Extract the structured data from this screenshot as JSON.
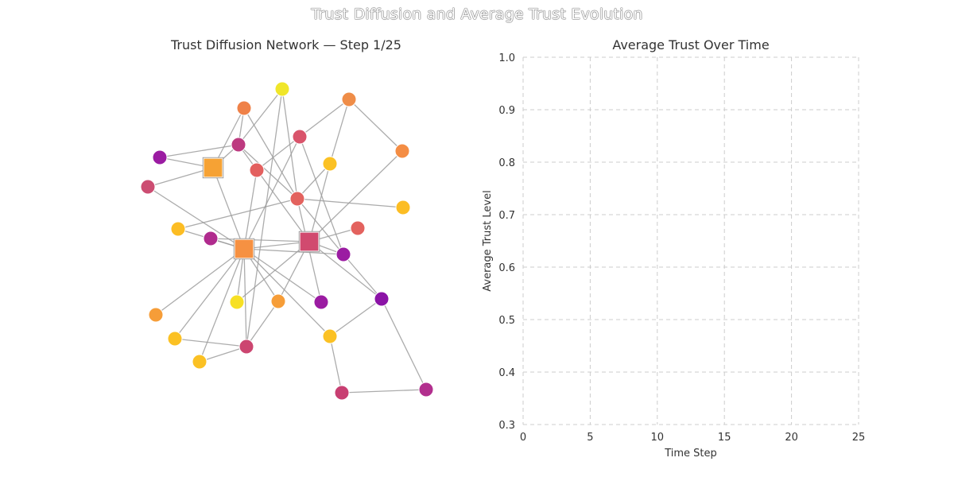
{
  "figure": {
    "title": "Trust Diffusion and Average Trust Evolution"
  },
  "network": {
    "title": "Trust Diffusion Network — Step 1/25"
  },
  "chart_data": {
    "type": "line",
    "title": "Average Trust Over Time",
    "xlabel": "Time Step",
    "ylabel": "Average Trust Level",
    "xlim": [
      0,
      25
    ],
    "ylim": [
      0.3,
      1.0
    ],
    "x_ticks": [
      0,
      5,
      10,
      15,
      20,
      25
    ],
    "y_ticks": [
      0.3,
      0.4,
      0.5,
      0.6,
      0.7,
      0.8,
      0.9,
      1.0
    ],
    "grid": true,
    "series": [
      {
        "x": [],
        "y": []
      }
    ]
  }
}
